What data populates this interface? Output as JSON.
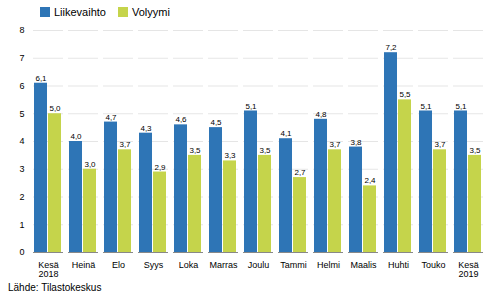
{
  "chart_data": {
    "type": "bar",
    "categories": [
      "Kesä\n2018",
      "Heinä",
      "Elo",
      "Syys",
      "Loka",
      "Marras",
      "Joulu",
      "Tammi",
      "Helmi",
      "Maalis",
      "Huhti",
      "Touko",
      "Kesä\n2019"
    ],
    "series": [
      {
        "name": "Liikevaihto",
        "color": "#2E75B6",
        "values": [
          6.1,
          4.0,
          4.7,
          4.3,
          4.6,
          4.5,
          5.1,
          4.1,
          4.8,
          3.8,
          7.2,
          5.1,
          5.1
        ],
        "value_labels": [
          "6,1",
          "4,0",
          "4,7",
          "4,3",
          "4,6",
          "4,5",
          "5,1",
          "4,1",
          "4,8",
          "3,8",
          "7,2",
          "5,1",
          "5,1"
        ]
      },
      {
        "name": "Volyymi",
        "color": "#C5D44B",
        "values": [
          5.0,
          3.0,
          3.7,
          2.9,
          3.5,
          3.3,
          3.5,
          2.7,
          3.7,
          2.4,
          5.5,
          3.7,
          3.5
        ],
        "value_labels": [
          "5,0",
          "3,0",
          "3,7",
          "2,9",
          "3,5",
          "3,3",
          "3,5",
          "2,7",
          "3,7",
          "2,4",
          "5,5",
          "3,7",
          "3,5"
        ]
      }
    ],
    "ylim": [
      0,
      8
    ],
    "yticks": [
      0,
      1,
      2,
      3,
      4,
      5,
      6,
      7,
      8
    ],
    "grid": true,
    "legend": "upper left",
    "data_labels": true,
    "source": "Lähde: Tilastokeskus"
  }
}
